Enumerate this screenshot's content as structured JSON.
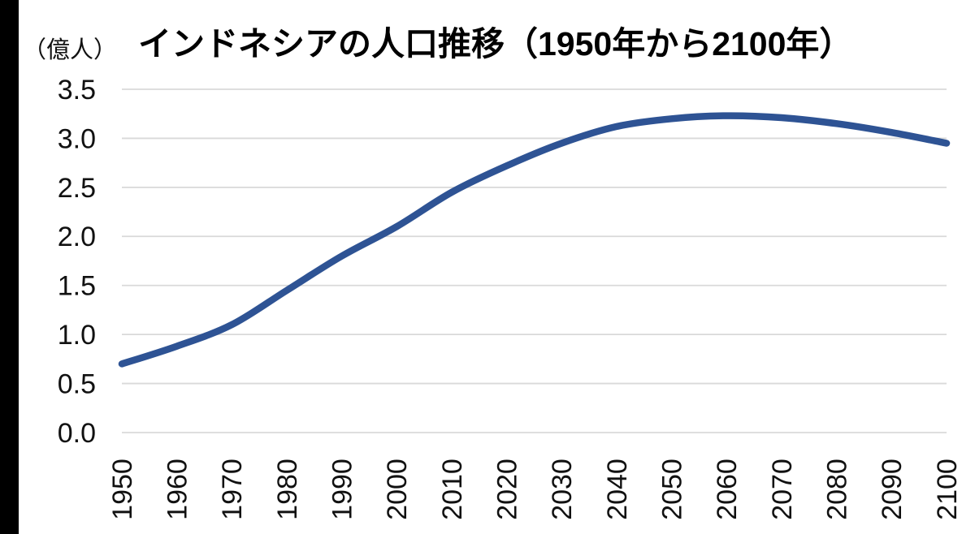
{
  "page": {
    "background_color": "#ffffff",
    "left_bar_color": "#000000"
  },
  "header": {
    "title": "インドネシアの人口推移（1950年から2100年）",
    "unit_label": "（億人）"
  },
  "chart_data": {
    "type": "line",
    "title": "インドネシアの人口推移（1950年から2100年）",
    "ylabel": "（億人）",
    "xlabel": "",
    "x": [
      1950,
      1960,
      1970,
      1980,
      1990,
      2000,
      2010,
      2020,
      2030,
      2040,
      2050,
      2060,
      2070,
      2080,
      2090,
      2100
    ],
    "xtick_labels": [
      "1950",
      "1960",
      "1970",
      "1980",
      "1990",
      "2000",
      "2010",
      "2020",
      "2030",
      "2040",
      "2050",
      "2060",
      "2070",
      "2080",
      "2090",
      "2100"
    ],
    "values": [
      0.7,
      0.88,
      1.1,
      1.45,
      1.8,
      2.1,
      2.45,
      2.72,
      2.95,
      3.12,
      3.2,
      3.23,
      3.21,
      3.15,
      3.06,
      2.95
    ],
    "ylim": [
      0.0,
      3.5
    ],
    "yticks": [
      0.0,
      0.5,
      1.0,
      1.5,
      2.0,
      2.5,
      3.0,
      3.5
    ],
    "ytick_labels": [
      "0.0",
      "0.5",
      "1.0",
      "1.5",
      "2.0",
      "2.5",
      "3.0",
      "3.5"
    ],
    "xtick_rotation": -90,
    "grid": "horizontal",
    "legend": "none",
    "line_color": "#2e5394",
    "line_width": 8.5,
    "gridline_color": "#d9d9d9",
    "tick_color": "#111111"
  }
}
